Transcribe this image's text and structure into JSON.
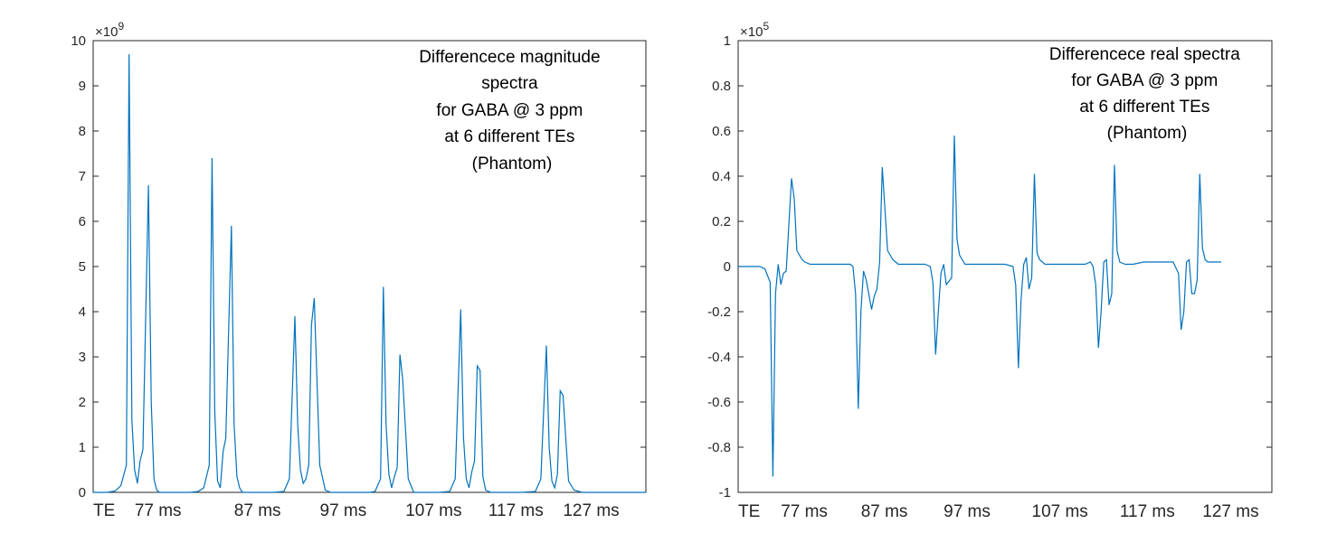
{
  "colors": {
    "line": "#0072BD",
    "axis": "#262626",
    "background": "#ffffff"
  },
  "chart_data": [
    {
      "type": "line",
      "name": "magnitude",
      "title": "",
      "xlabel": "",
      "ylabel": "",
      "exponent": "9",
      "exponent_prefix": "×10",
      "xlim": [
        0,
        200
      ],
      "ylim": [
        0,
        10
      ],
      "yticks": [
        {
          "v": 0,
          "label": "0"
        },
        {
          "v": 1,
          "label": "1"
        },
        {
          "v": 2,
          "label": "2"
        },
        {
          "v": 3,
          "label": "3"
        },
        {
          "v": 4,
          "label": "4"
        },
        {
          "v": 5,
          "label": "5"
        },
        {
          "v": 6,
          "label": "6"
        },
        {
          "v": 7,
          "label": "7"
        },
        {
          "v": 8,
          "label": "8"
        },
        {
          "v": 9,
          "label": "9"
        },
        {
          "v": 10,
          "label": "10"
        }
      ],
      "te_labels": [
        {
          "x": 0,
          "label": "TE"
        },
        {
          "x": 15,
          "label": "77 ms"
        },
        {
          "x": 51,
          "label": "87 ms"
        },
        {
          "x": 82,
          "label": "97 ms"
        },
        {
          "x": 113,
          "label": "107 ms"
        },
        {
          "x": 143,
          "label": "117 ms"
        },
        {
          "x": 170,
          "label": "127 ms"
        }
      ],
      "annotation": [
        "Differencece magnitude",
        "spectra",
        "for GABA @ 3 ppm",
        "at 6 different TEs",
        "(Phantom)"
      ],
      "series": [
        {
          "name": "magnitude difference",
          "x": [
            0,
            5,
            8,
            10,
            12,
            13,
            14,
            15,
            16,
            17,
            18,
            20,
            21,
            22,
            23,
            24,
            25,
            26,
            28,
            30,
            35,
            38,
            40,
            42,
            43,
            44,
            45,
            46,
            47,
            48,
            50,
            51,
            52,
            53,
            54,
            56,
            58,
            60,
            65,
            69,
            71,
            73,
            74,
            75,
            76,
            77,
            78,
            79,
            80,
            82,
            84,
            86,
            90,
            95,
            100,
            102,
            104,
            105,
            106,
            107,
            108,
            109,
            110,
            111,
            112,
            114,
            116,
            120,
            125,
            129,
            131,
            133,
            134,
            135,
            136,
            137,
            138,
            139,
            140,
            141,
            142,
            144,
            146,
            150,
            155,
            160,
            162,
            164,
            165,
            166,
            167,
            168,
            169,
            170,
            172,
            174,
            177,
            180,
            200
          ],
          "values": [
            0,
            0,
            0.03,
            0.15,
            0.6,
            9.7,
            1.6,
            0.5,
            0.2,
            0.7,
            0.95,
            6.8,
            2.0,
            0.3,
            0.05,
            0,
            0,
            0,
            0,
            0,
            0,
            0.02,
            0.1,
            0.6,
            7.4,
            1.8,
            0.25,
            0.1,
            0.9,
            1.2,
            5.9,
            1.5,
            0.35,
            0.1,
            0,
            0,
            0,
            0,
            0,
            0.02,
            0.3,
            3.9,
            1.5,
            0.5,
            0.2,
            0.3,
            0.6,
            3.7,
            4.3,
            0.6,
            0.05,
            0,
            0,
            0,
            0,
            0.02,
            0.3,
            4.55,
            1.5,
            0.4,
            0.1,
            0.35,
            0.55,
            3.05,
            2.5,
            0.3,
            0,
            0,
            0,
            0.02,
            0.3,
            4.05,
            1.2,
            0.3,
            0.1,
            0.45,
            0.7,
            2.8,
            2.7,
            0.35,
            0.05,
            0,
            0,
            0,
            0,
            0.02,
            0.3,
            3.25,
            1.0,
            0.25,
            0.1,
            0.4,
            2.25,
            2.15,
            0.25,
            0.05,
            0,
            0,
            0
          ]
        }
      ]
    },
    {
      "type": "line",
      "name": "real",
      "title": "",
      "xlabel": "",
      "ylabel": "",
      "exponent": "5",
      "exponent_prefix": "×10",
      "xlim": [
        0,
        200
      ],
      "ylim": [
        -1,
        1
      ],
      "yticks": [
        {
          "v": -1,
          "label": "-1"
        },
        {
          "v": -0.8,
          "label": "-0.8"
        },
        {
          "v": -0.6,
          "label": "-0.6"
        },
        {
          "v": -0.4,
          "label": "-0.4"
        },
        {
          "v": -0.2,
          "label": "-0.2"
        },
        {
          "v": 0,
          "label": "0"
        },
        {
          "v": 0.2,
          "label": "0.2"
        },
        {
          "v": 0.4,
          "label": "0.4"
        },
        {
          "v": 0.6,
          "label": "0.6"
        },
        {
          "v": 0.8,
          "label": "0.8"
        },
        {
          "v": 1,
          "label": "1"
        }
      ],
      "te_labels": [
        {
          "x": 0,
          "label": "TE"
        },
        {
          "x": 16,
          "label": "77 ms"
        },
        {
          "x": 46,
          "label": "87 ms"
        },
        {
          "x": 77,
          "label": "97 ms"
        },
        {
          "x": 110,
          "label": "107 ms"
        },
        {
          "x": 143,
          "label": "117 ms"
        },
        {
          "x": 174,
          "label": "127 ms"
        }
      ],
      "annotation": [
        "Differencece real spectra",
        "for GABA @ 3 ppm",
        "at 6 different TEs",
        "(Phantom)"
      ],
      "series": [
        {
          "name": "real difference",
          "x": [
            0,
            3,
            5,
            8,
            10,
            12,
            13,
            14,
            15,
            16,
            17,
            18,
            20,
            21,
            22,
            24,
            25,
            27,
            30,
            35,
            40,
            42,
            43,
            44,
            45,
            46,
            47,
            48,
            50,
            51,
            52,
            53,
            54,
            56,
            58,
            60,
            65,
            70,
            72,
            73,
            74,
            75,
            76,
            77,
            78,
            80,
            81,
            82,
            83,
            84,
            85,
            88,
            92,
            100,
            103,
            104,
            105,
            106,
            107,
            108,
            109,
            110,
            111,
            112,
            113,
            115,
            118,
            122,
            130,
            132,
            133,
            134,
            135,
            136,
            137,
            138,
            139,
            140,
            141,
            142,
            143,
            145,
            148,
            152,
            160,
            163,
            165,
            166,
            167,
            168,
            169,
            170,
            171,
            172,
            173,
            174,
            175,
            176,
            178,
            181
          ],
          "values": [
            0,
            0,
            0,
            0,
            -0.01,
            -0.07,
            -0.93,
            -0.12,
            0.01,
            -0.08,
            -0.03,
            -0.02,
            0.39,
            0.3,
            0.07,
            0.03,
            0.02,
            0.01,
            0.01,
            0.01,
            0.01,
            0.01,
            0,
            -0.12,
            -0.63,
            -0.2,
            -0.02,
            -0.06,
            -0.19,
            -0.13,
            -0.1,
            0.02,
            0.44,
            0.07,
            0.03,
            0.01,
            0.01,
            0.01,
            0,
            -0.07,
            -0.39,
            -0.2,
            -0.03,
            0.01,
            -0.08,
            -0.05,
            0.58,
            0.12,
            0.05,
            0.03,
            0.01,
            0.01,
            0.01,
            0.01,
            0,
            -0.08,
            -0.45,
            -0.15,
            0.01,
            0.04,
            -0.1,
            -0.05,
            0.41,
            0.06,
            0.03,
            0.01,
            0.01,
            0.01,
            0.01,
            0.02,
            0,
            -0.08,
            -0.36,
            -0.2,
            0.02,
            0.03,
            -0.17,
            -0.12,
            0.45,
            0.07,
            0.02,
            0.01,
            0.01,
            0.02,
            0.02,
            0.02,
            -0.03,
            -0.28,
            -0.2,
            0.02,
            0.03,
            -0.12,
            -0.12,
            -0.06,
            0.41,
            0.08,
            0.03,
            0.02,
            0.02,
            0.02
          ]
        }
      ]
    }
  ]
}
